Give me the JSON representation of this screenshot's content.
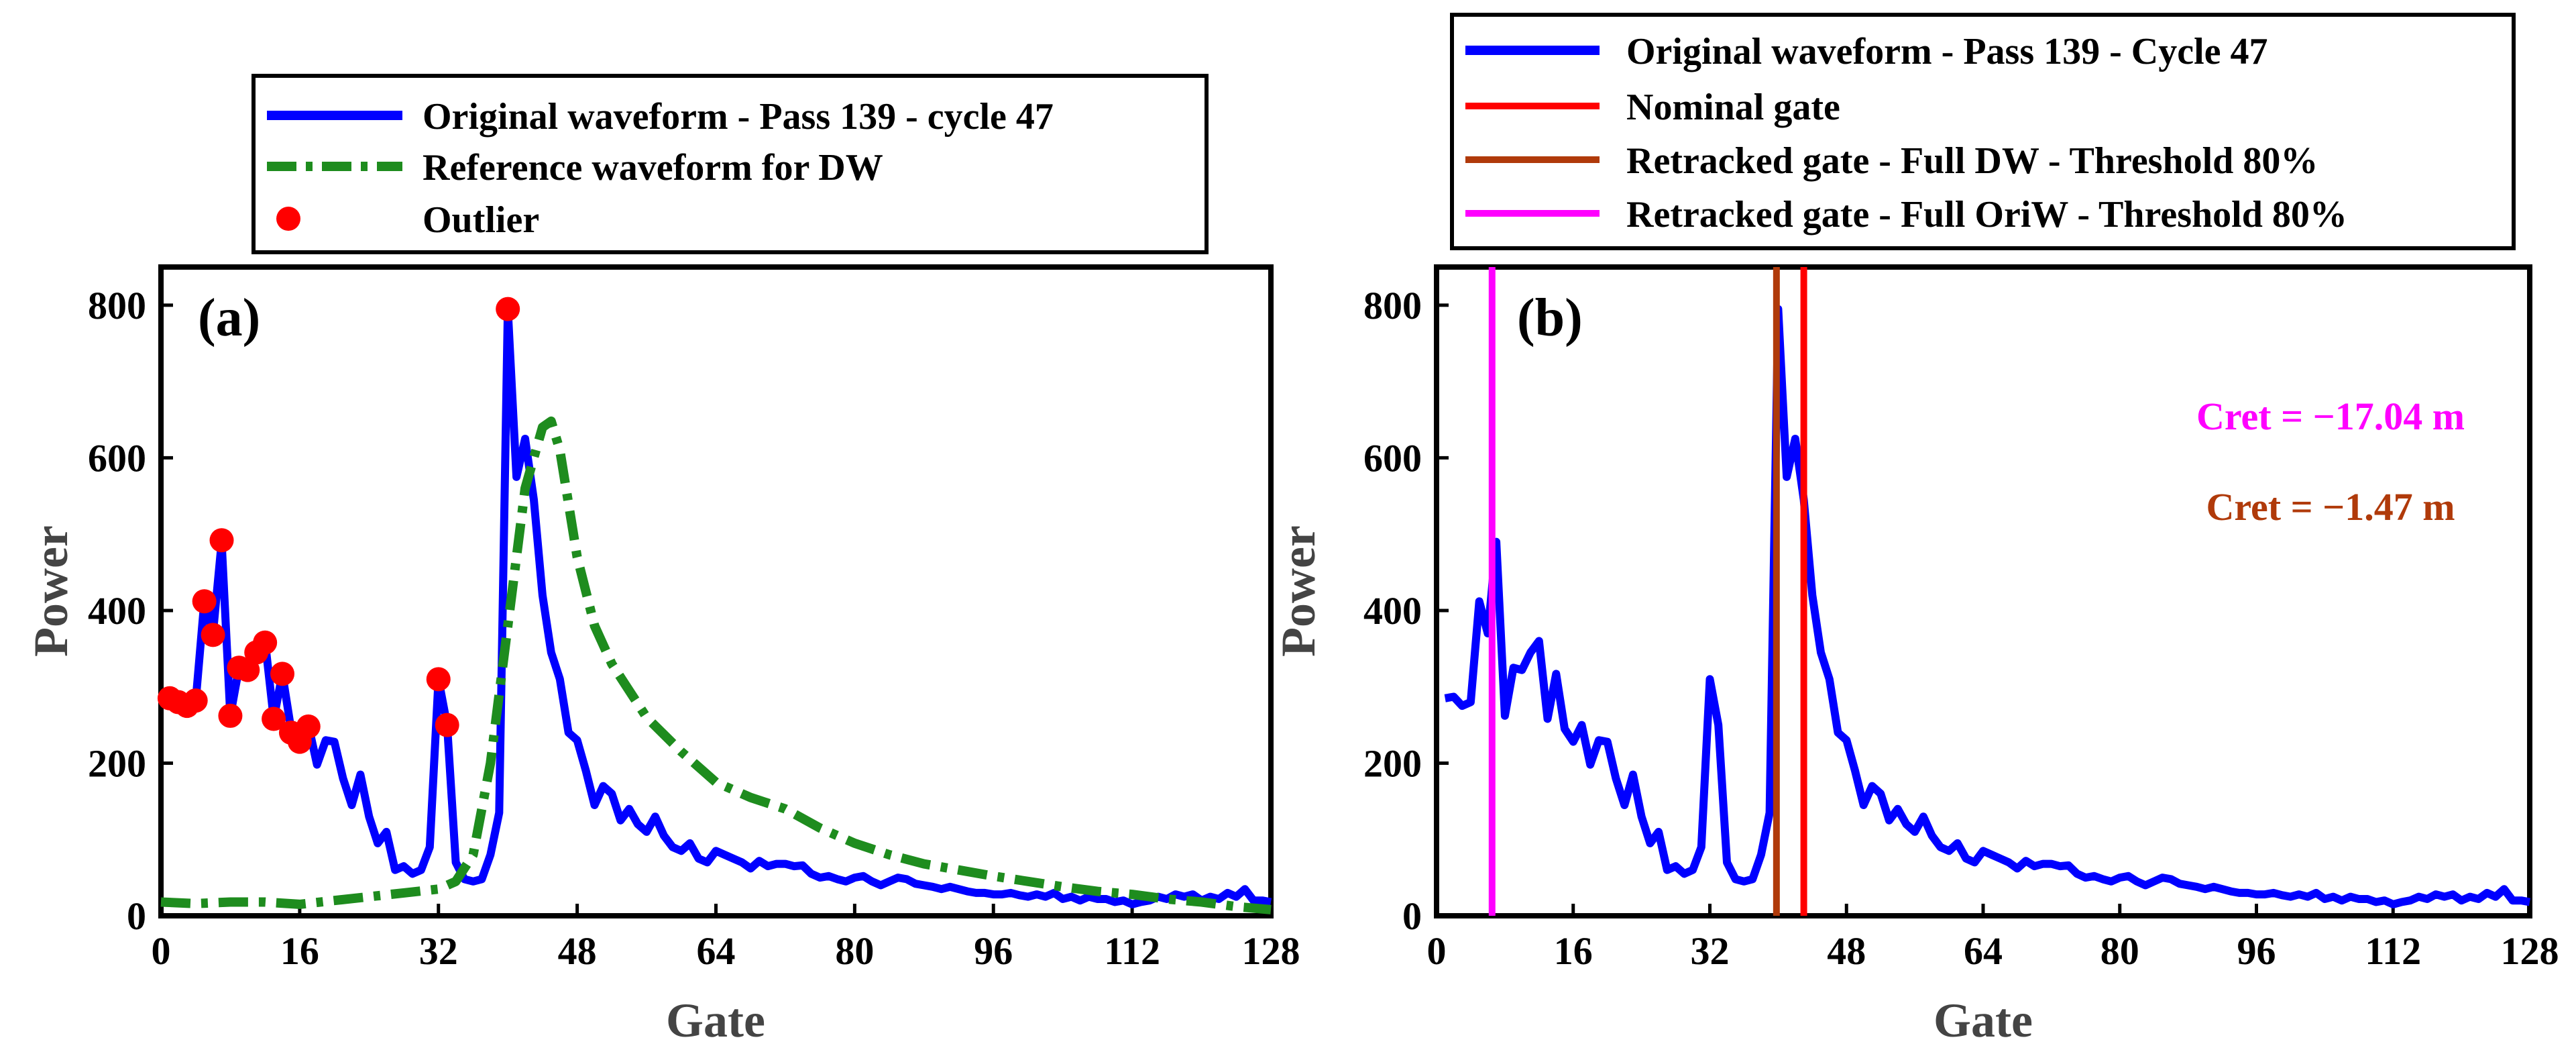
{
  "chart_data": [
    {
      "panel": "a",
      "type": "line",
      "panel_label": "(a)",
      "xlabel": "Gate",
      "ylabel": "Power",
      "xlim": [
        0,
        128
      ],
      "ylim": [
        0,
        850
      ],
      "xticks": [
        0,
        16,
        32,
        48,
        64,
        80,
        96,
        112,
        128
      ],
      "yticks": [
        0,
        200,
        400,
        600,
        800
      ],
      "legend_position": "top",
      "series": [
        {
          "name": "Original waveform - Pass 139 - cycle 47",
          "style": "solid",
          "color": "#0000ff",
          "x": [
            1,
            2,
            3,
            4,
            5,
            6,
            7,
            8,
            9,
            10,
            11,
            12,
            13,
            14,
            15,
            16,
            17,
            18,
            19,
            20,
            21,
            22,
            23,
            24,
            25,
            26,
            27,
            28,
            29,
            30,
            31,
            32,
            33,
            34,
            35,
            36,
            37,
            38,
            39,
            40,
            41,
            42,
            43,
            44,
            45,
            46,
            47,
            48,
            49,
            50,
            51,
            52,
            53,
            54,
            55,
            56,
            57,
            58,
            59,
            60,
            61,
            62,
            63,
            64,
            65,
            66,
            67,
            68,
            69,
            70,
            71,
            72,
            73,
            74,
            75,
            76,
            77,
            78,
            79,
            80,
            81,
            82,
            83,
            84,
            85,
            86,
            87,
            88,
            89,
            90,
            91,
            92,
            93,
            94,
            95,
            96,
            97,
            98,
            99,
            100,
            101,
            102,
            103,
            104,
            105,
            106,
            107,
            108,
            109,
            110,
            111,
            112,
            113,
            114,
            115,
            116,
            117,
            118,
            119,
            120,
            121,
            122,
            123,
            124,
            125,
            126,
            127,
            128
          ],
          "values": [
            285,
            287,
            275,
            280,
            412,
            370,
            490,
            262,
            325,
            322,
            345,
            360,
            258,
            317,
            245,
            228,
            250,
            198,
            230,
            228,
            180,
            145,
            185,
            130,
            95,
            110,
            60,
            65,
            55,
            60,
            90,
            310,
            250,
            70,
            48,
            45,
            48,
            80,
            135,
            795,
            575,
            625,
            545,
            420,
            345,
            310,
            240,
            230,
            190,
            145,
            170,
            160,
            125,
            140,
            120,
            110,
            130,
            105,
            90,
            85,
            95,
            75,
            70,
            85,
            80,
            75,
            70,
            62,
            72,
            65,
            68,
            68,
            65,
            66,
            55,
            50,
            52,
            48,
            45,
            50,
            52,
            45,
            40,
            45,
            50,
            48,
            42,
            40,
            38,
            35,
            38,
            35,
            32,
            30,
            30,
            28,
            28,
            30,
            27,
            25,
            28,
            25,
            30,
            22,
            25,
            20,
            25,
            22,
            22,
            18,
            20,
            15,
            18,
            20,
            25,
            22,
            28,
            25,
            28,
            20,
            25,
            22,
            30,
            25,
            35,
            20,
            20,
            18
          ]
        },
        {
          "name": "Reference waveform for DW",
          "style": "dashdot",
          "color": "#1e8c1e",
          "x": [
            0,
            4,
            8,
            12,
            16,
            20,
            24,
            28,
            32,
            34,
            36,
            38,
            40,
            42,
            44,
            45,
            46,
            48,
            50,
            52,
            56,
            60,
            64,
            68,
            72,
            76,
            80,
            84,
            88,
            92,
            96,
            100,
            104,
            108,
            112,
            116,
            120,
            124,
            128
          ],
          "values": [
            18,
            16,
            18,
            18,
            15,
            20,
            25,
            30,
            35,
            45,
            80,
            200,
            380,
            560,
            640,
            648,
            610,
            470,
            380,
            330,
            260,
            215,
            175,
            155,
            140,
            115,
            95,
            80,
            68,
            60,
            52,
            45,
            38,
            32,
            28,
            22,
            18,
            12,
            8
          ]
        },
        {
          "name": "Outlier",
          "style": "markers",
          "color": "#ff0000",
          "x": [
            1,
            2,
            3,
            4,
            5,
            6,
            7,
            8,
            9,
            10,
            11,
            12,
            13,
            14,
            15,
            16,
            17,
            32,
            33,
            40
          ],
          "values": [
            285,
            280,
            275,
            282,
            412,
            368,
            492,
            262,
            325,
            322,
            345,
            358,
            258,
            317,
            240,
            228,
            248,
            310,
            250,
            795
          ]
        }
      ]
    },
    {
      "panel": "b",
      "type": "line",
      "panel_label": "(b)",
      "xlabel": "Gate",
      "ylabel": "Power",
      "xlim": [
        0,
        128
      ],
      "ylim": [
        0,
        850
      ],
      "xticks": [
        0,
        16,
        32,
        48,
        64,
        80,
        96,
        112,
        128
      ],
      "yticks": [
        0,
        200,
        400,
        600,
        800
      ],
      "legend_position": "top",
      "series": [
        {
          "name": "Original waveform - Pass 139 - Cycle 47",
          "style": "solid",
          "color": "#0000ff",
          "x": [
            1,
            2,
            3,
            4,
            5,
            6,
            7,
            8,
            9,
            10,
            11,
            12,
            13,
            14,
            15,
            16,
            17,
            18,
            19,
            20,
            21,
            22,
            23,
            24,
            25,
            26,
            27,
            28,
            29,
            30,
            31,
            32,
            33,
            34,
            35,
            36,
            37,
            38,
            39,
            40,
            41,
            42,
            43,
            44,
            45,
            46,
            47,
            48,
            49,
            50,
            51,
            52,
            53,
            54,
            55,
            56,
            57,
            58,
            59,
            60,
            61,
            62,
            63,
            64,
            65,
            66,
            67,
            68,
            69,
            70,
            71,
            72,
            73,
            74,
            75,
            76,
            77,
            78,
            79,
            80,
            81,
            82,
            83,
            84,
            85,
            86,
            87,
            88,
            89,
            90,
            91,
            92,
            93,
            94,
            95,
            96,
            97,
            98,
            99,
            100,
            101,
            102,
            103,
            104,
            105,
            106,
            107,
            108,
            109,
            110,
            111,
            112,
            113,
            114,
            115,
            116,
            117,
            118,
            119,
            120,
            121,
            122,
            123,
            124,
            125,
            126,
            127,
            128
          ],
          "values": [
            285,
            287,
            275,
            280,
            412,
            370,
            490,
            262,
            325,
            322,
            345,
            360,
            258,
            317,
            245,
            228,
            250,
            198,
            230,
            228,
            180,
            145,
            185,
            130,
            95,
            110,
            60,
            65,
            55,
            60,
            90,
            310,
            250,
            70,
            48,
            45,
            48,
            80,
            135,
            795,
            575,
            625,
            545,
            420,
            345,
            310,
            240,
            230,
            190,
            145,
            170,
            160,
            125,
            140,
            120,
            110,
            130,
            105,
            90,
            85,
            95,
            75,
            70,
            85,
            80,
            75,
            70,
            62,
            72,
            65,
            68,
            68,
            65,
            66,
            55,
            50,
            52,
            48,
            45,
            50,
            52,
            45,
            40,
            45,
            50,
            48,
            42,
            40,
            38,
            35,
            38,
            35,
            32,
            30,
            30,
            28,
            28,
            30,
            27,
            25,
            28,
            25,
            30,
            22,
            25,
            20,
            25,
            22,
            22,
            18,
            20,
            15,
            18,
            20,
            25,
            22,
            28,
            25,
            28,
            20,
            25,
            22,
            30,
            25,
            35,
            20,
            20,
            18
          ]
        },
        {
          "name": "Nominal gate",
          "style": "vline",
          "color": "#ff0000",
          "x": 43
        },
        {
          "name": "Retracked gate - Full DW - Threshold 80%",
          "style": "vline",
          "color": "#b03a0a",
          "x": 39.8
        },
        {
          "name": "Retracked gate - Full OriW - Threshold 80%",
          "style": "vline",
          "color": "#ff00ff",
          "x": 6.5
        }
      ],
      "annotations": [
        {
          "text": "Cret = −17.04 m",
          "color": "#ff00ff",
          "x": 104,
          "y": 650
        },
        {
          "text": "Cret = −1.47 m",
          "color": "#b03a0a",
          "x": 104,
          "y": 530
        }
      ]
    }
  ]
}
